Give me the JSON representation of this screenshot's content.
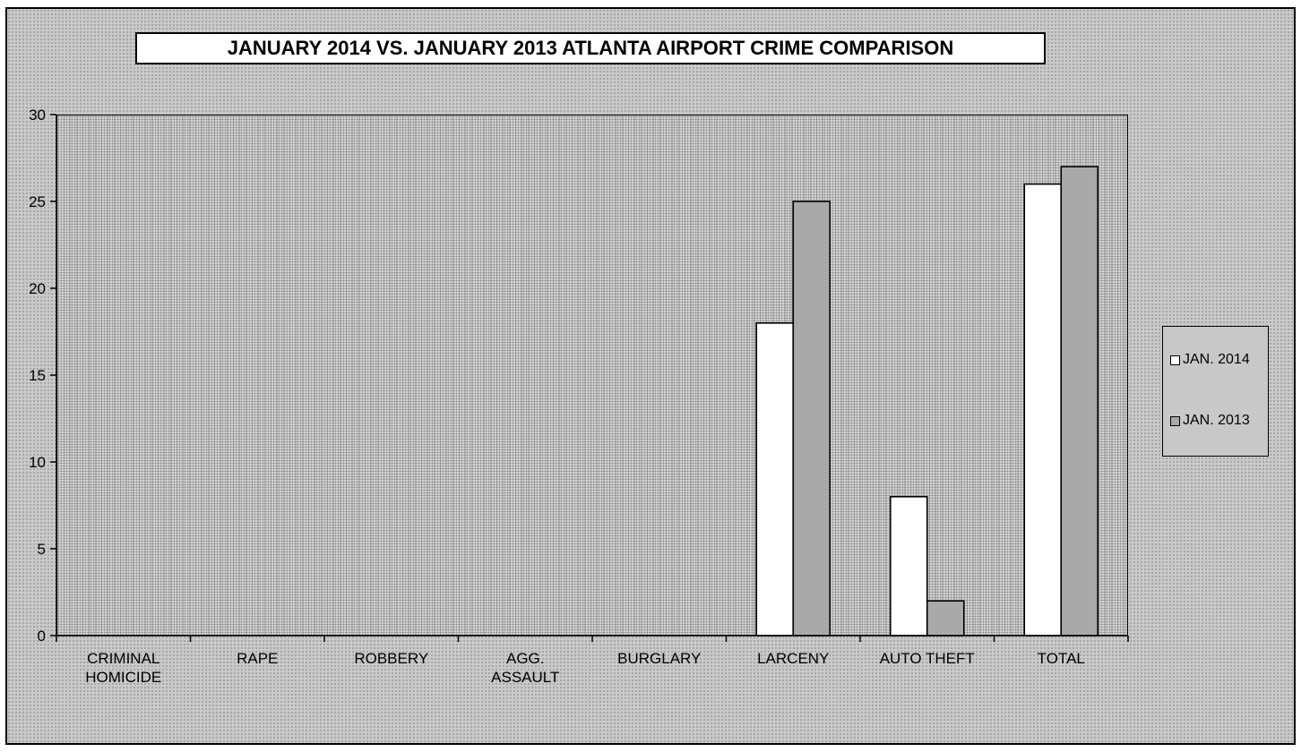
{
  "chart_data": {
    "type": "bar",
    "title": "JANUARY 2014 VS. JANUARY 2013 ATLANTA AIRPORT CRIME COMPARISON",
    "xlabel": "",
    "ylabel": "",
    "ylim": [
      0,
      30
    ],
    "yticks": [
      "0",
      "5",
      "10",
      "15",
      "20",
      "25",
      "30"
    ],
    "categories": [
      [
        "CRIMINAL",
        "HOMICIDE"
      ],
      [
        "RAPE"
      ],
      [
        "ROBBERY"
      ],
      [
        "AGG.",
        "ASSAULT"
      ],
      [
        "BURGLARY"
      ],
      [
        "LARCENY"
      ],
      [
        "AUTO THEFT"
      ],
      [
        "TOTAL"
      ]
    ],
    "series": [
      {
        "name": "JAN. 2014",
        "color": "#ffffff",
        "values": [
          0,
          0,
          0,
          0,
          0,
          18,
          8,
          26
        ]
      },
      {
        "name": "JAN. 2013",
        "color": "#a9a9a9",
        "values": [
          0,
          0,
          0,
          0,
          0,
          25,
          2,
          27
        ]
      }
    ],
    "grid": false,
    "legend_position": "right"
  }
}
